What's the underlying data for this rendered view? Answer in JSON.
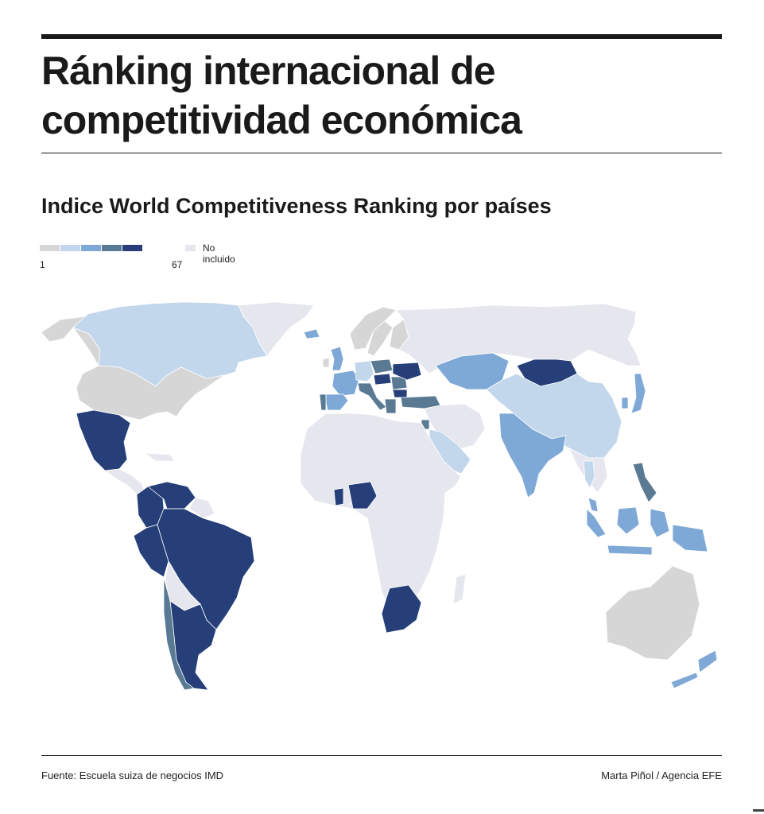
{
  "header": {
    "title": "Ránking internacional de competitividad económica",
    "subtitle": "Indice World Competitiveness Ranking por países"
  },
  "legend": {
    "min_label": "1",
    "max_label": "67",
    "not_included_label": "No incluido",
    "scale_colors": [
      "#d6d6d6",
      "#c2d6ec",
      "#7ea8d6",
      "#5a7a94",
      "#263f79"
    ],
    "not_included_color": "#e6e7ee"
  },
  "map": {
    "ocean_color": "#ffffff",
    "border_color": "#ffffff",
    "countries": [
      {
        "name": "Canada",
        "class": 1
      },
      {
        "name": "United States",
        "class": 0
      },
      {
        "name": "Greenland",
        "class": -1
      },
      {
        "name": "Mexico",
        "class": 4
      },
      {
        "name": "Central America",
        "class": -1
      },
      {
        "name": "Colombia",
        "class": 4
      },
      {
        "name": "Venezuela",
        "class": 4
      },
      {
        "name": "Guyana",
        "class": -1
      },
      {
        "name": "Peru",
        "class": 4
      },
      {
        "name": "Brazil",
        "class": 4
      },
      {
        "name": "Bolivia",
        "class": -1
      },
      {
        "name": "Chile",
        "class": 3
      },
      {
        "name": "Argentina",
        "class": 4
      },
      {
        "name": "Iceland",
        "class": 2
      },
      {
        "name": "Norway",
        "class": 0
      },
      {
        "name": "Sweden",
        "class": 0
      },
      {
        "name": "Finland",
        "class": 0
      },
      {
        "name": "United Kingdom",
        "class": 2
      },
      {
        "name": "Ireland",
        "class": 0
      },
      {
        "name": "France",
        "class": 2
      },
      {
        "name": "Spain",
        "class": 2
      },
      {
        "name": "Portugal",
        "class": 3
      },
      {
        "name": "Germany",
        "class": 1
      },
      {
        "name": "Poland",
        "class": 3
      },
      {
        "name": "Italy",
        "class": 3
      },
      {
        "name": "Hungary",
        "class": 4
      },
      {
        "name": "Romania",
        "class": 3
      },
      {
        "name": "Ukraine",
        "class": 4
      },
      {
        "name": "Bulgaria",
        "class": 4
      },
      {
        "name": "Greece",
        "class": 3
      },
      {
        "name": "Turkey",
        "class": 3
      },
      {
        "name": "Russia",
        "class": -1
      },
      {
        "name": "Kazakhstan",
        "class": 2
      },
      {
        "name": "Mongolia",
        "class": 4
      },
      {
        "name": "China",
        "class": 1
      },
      {
        "name": "Japan",
        "class": 2
      },
      {
        "name": "South Korea",
        "class": 2
      },
      {
        "name": "India",
        "class": 2
      },
      {
        "name": "Saudi Arabia",
        "class": 1
      },
      {
        "name": "Jordan",
        "class": 3
      },
      {
        "name": "Thailand",
        "class": 1
      },
      {
        "name": "Philippines",
        "class": 3
      },
      {
        "name": "Malaysia",
        "class": 2
      },
      {
        "name": "Indonesia",
        "class": 2
      },
      {
        "name": "Australia",
        "class": 0
      },
      {
        "name": "New Zealand",
        "class": 2
      },
      {
        "name": "Nigeria",
        "class": 4
      },
      {
        "name": "Ghana",
        "class": 4
      },
      {
        "name": "South Africa",
        "class": 4
      },
      {
        "name": "Africa (rest)",
        "class": -1
      }
    ]
  },
  "footer": {
    "source": "Fuente: Escuela suiza de negocios IMD",
    "credit": "Marta Piñol / Agencia EFE"
  }
}
